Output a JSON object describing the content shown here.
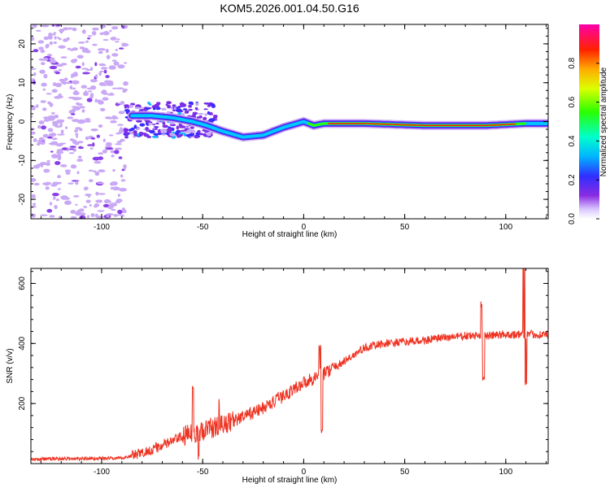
{
  "title": "KOM5.2026.001.04.50.G16",
  "colors": {
    "line": "#ee3322",
    "frame": "#000000",
    "speckle": "#c9a8f5",
    "speckle_dark": "#8a40e8"
  },
  "chart_data": [
    {
      "type": "heatmap",
      "name": "spectrogram",
      "xlabel": "Height of straight line (km)",
      "ylabel": "Frequency (Hz)",
      "xlim": [
        -135,
        121
      ],
      "ylim": [
        -25,
        25
      ],
      "xticks": [
        -100,
        -50,
        0,
        50,
        100
      ],
      "yticks": [
        -20,
        -10,
        0,
        10,
        20
      ],
      "xtick_labels": [
        "-100",
        "-50",
        "0",
        "50",
        "100"
      ],
      "ytick_labels": [
        "-20",
        "-10",
        "0",
        "10",
        "20"
      ],
      "ridge": [
        {
          "x": -85,
          "y": 1.5
        },
        {
          "x": -75,
          "y": 1.5
        },
        {
          "x": -65,
          "y": 1.0
        },
        {
          "x": -55,
          "y": 0.0
        },
        {
          "x": -48,
          "y": -1.0
        },
        {
          "x": -40,
          "y": -2.5
        },
        {
          "x": -30,
          "y": -4.0
        },
        {
          "x": -20,
          "y": -3.5
        },
        {
          "x": -10,
          "y": -1.5
        },
        {
          "x": 0,
          "y": 0.0
        },
        {
          "x": 5,
          "y": -1.0
        },
        {
          "x": 10,
          "y": -0.5
        },
        {
          "x": 30,
          "y": -0.5
        },
        {
          "x": 60,
          "y": -1.0
        },
        {
          "x": 90,
          "y": -1.0
        },
        {
          "x": 110,
          "y": -0.5
        },
        {
          "x": 121,
          "y": -0.5
        }
      ],
      "colorbar": {
        "label": "Normalized spectral amplitude",
        "range": [
          0,
          1
        ],
        "ticks": [
          0.0,
          0.2,
          0.4,
          0.6,
          0.8
        ],
        "tick_labels": [
          "0.0",
          "0.2",
          "0.4",
          "0.6",
          "0.8"
        ]
      }
    },
    {
      "type": "line",
      "name": "snr",
      "xlabel": "Height of straight line (km)",
      "ylabel": "SNR (v/v)",
      "xlim": [
        -135,
        121
      ],
      "ylim": [
        0,
        650
      ],
      "xticks": [
        -100,
        -50,
        0,
        50,
        100
      ],
      "yticks": [
        200,
        400,
        600
      ],
      "xtick_labels": [
        "-100",
        "-50",
        "0",
        "50",
        "100"
      ],
      "ytick_labels": [
        "200",
        "400",
        "600"
      ],
      "trend": [
        {
          "x": -135,
          "y": 15
        },
        {
          "x": -90,
          "y": 18
        },
        {
          "x": -80,
          "y": 35
        },
        {
          "x": -70,
          "y": 60
        },
        {
          "x": -60,
          "y": 90
        },
        {
          "x": -50,
          "y": 110
        },
        {
          "x": -40,
          "y": 130
        },
        {
          "x": -30,
          "y": 155
        },
        {
          "x": -20,
          "y": 185
        },
        {
          "x": -10,
          "y": 225
        },
        {
          "x": 0,
          "y": 270
        },
        {
          "x": 10,
          "y": 300
        },
        {
          "x": 20,
          "y": 340
        },
        {
          "x": 30,
          "y": 385
        },
        {
          "x": 40,
          "y": 400
        },
        {
          "x": 50,
          "y": 405
        },
        {
          "x": 60,
          "y": 410
        },
        {
          "x": 70,
          "y": 420
        },
        {
          "x": 80,
          "y": 425
        },
        {
          "x": 90,
          "y": 425
        },
        {
          "x": 100,
          "y": 430
        },
        {
          "x": 121,
          "y": 430
        }
      ],
      "spikes": [
        {
          "x": -55,
          "y": 260
        },
        {
          "x": -52,
          "y": 20
        },
        {
          "x": -42,
          "y": 210
        },
        {
          "x": 8,
          "y": 390
        },
        {
          "x": 9,
          "y": 110
        },
        {
          "x": 88,
          "y": 530
        },
        {
          "x": 89,
          "y": 280
        },
        {
          "x": 109,
          "y": 650
        },
        {
          "x": 110,
          "y": 270
        }
      ]
    }
  ]
}
